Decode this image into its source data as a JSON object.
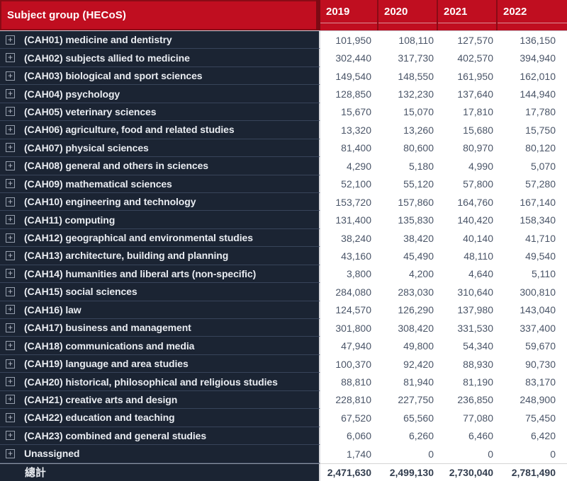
{
  "colors": {
    "header_bg": "#C00E20",
    "header_border_dark": "#8A0B16",
    "header_underline_pink": "#DD8F97",
    "row_bg_navy": "#1B2433",
    "row_separator": "#38445A",
    "value_text": "#4A5568",
    "header_text": "#FFFFFF"
  },
  "icons": {
    "expand_glyph": "+"
  },
  "header": {
    "subject_label": "Subject group (HECoS)",
    "years": [
      "2019",
      "2020",
      "2021",
      "2022"
    ]
  },
  "rows": [
    {
      "label": "(CAH01) medicine and dentistry",
      "values": [
        "101,950",
        "108,110",
        "127,570",
        "136,150"
      ]
    },
    {
      "label": "(CAH02) subjects allied to medicine",
      "values": [
        "302,440",
        "317,730",
        "402,570",
        "394,940"
      ]
    },
    {
      "label": "(CAH03) biological and sport sciences",
      "values": [
        "149,540",
        "148,550",
        "161,950",
        "162,010"
      ]
    },
    {
      "label": "(CAH04) psychology",
      "values": [
        "128,850",
        "132,230",
        "137,640",
        "144,940"
      ]
    },
    {
      "label": "(CAH05) veterinary sciences",
      "values": [
        "15,670",
        "15,070",
        "17,810",
        "17,780"
      ]
    },
    {
      "label": "(CAH06) agriculture, food and related studies",
      "values": [
        "13,320",
        "13,260",
        "15,680",
        "15,750"
      ]
    },
    {
      "label": "(CAH07) physical sciences",
      "values": [
        "81,400",
        "80,600",
        "80,970",
        "80,120"
      ]
    },
    {
      "label": "(CAH08) general and others in sciences",
      "values": [
        "4,290",
        "5,180",
        "4,990",
        "5,070"
      ]
    },
    {
      "label": "(CAH09) mathematical sciences",
      "values": [
        "52,100",
        "55,120",
        "57,800",
        "57,280"
      ]
    },
    {
      "label": "(CAH10) engineering and technology",
      "values": [
        "153,720",
        "157,860",
        "164,760",
        "167,140"
      ]
    },
    {
      "label": "(CAH11) computing",
      "values": [
        "131,400",
        "135,830",
        "140,420",
        "158,340"
      ]
    },
    {
      "label": "(CAH12) geographical and environmental studies",
      "values": [
        "38,240",
        "38,420",
        "40,140",
        "41,710"
      ]
    },
    {
      "label": "(CAH13) architecture, building and planning",
      "values": [
        "43,160",
        "45,490",
        "48,110",
        "49,540"
      ]
    },
    {
      "label": "(CAH14) humanities and liberal arts (non-specific)",
      "values": [
        "3,800",
        "4,200",
        "4,640",
        "5,110"
      ]
    },
    {
      "label": "(CAH15) social sciences",
      "values": [
        "284,080",
        "283,030",
        "310,640",
        "300,810"
      ]
    },
    {
      "label": "(CAH16) law",
      "values": [
        "124,570",
        "126,290",
        "137,980",
        "143,040"
      ]
    },
    {
      "label": "(CAH17) business and management",
      "values": [
        "301,800",
        "308,420",
        "331,530",
        "337,400"
      ]
    },
    {
      "label": "(CAH18) communications and media",
      "values": [
        "47,940",
        "49,800",
        "54,340",
        "59,670"
      ]
    },
    {
      "label": "(CAH19) language and area studies",
      "values": [
        "100,370",
        "92,420",
        "88,930",
        "90,730"
      ]
    },
    {
      "label": "(CAH20) historical, philosophical and religious studies",
      "values": [
        "88,810",
        "81,940",
        "81,190",
        "83,170"
      ]
    },
    {
      "label": "(CAH21) creative arts and design",
      "values": [
        "228,810",
        "227,750",
        "236,850",
        "248,900"
      ]
    },
    {
      "label": "(CAH22) education and teaching",
      "values": [
        "67,520",
        "65,560",
        "77,080",
        "75,450"
      ]
    },
    {
      "label": "(CAH23) combined and general studies",
      "values": [
        "6,060",
        "6,260",
        "6,460",
        "6,420"
      ]
    },
    {
      "label": "Unassigned",
      "values": [
        "1,740",
        "0",
        "0",
        "0"
      ]
    }
  ],
  "total": {
    "label": "總計",
    "values": [
      "2,471,630",
      "2,499,130",
      "2,730,040",
      "2,781,490"
    ]
  }
}
